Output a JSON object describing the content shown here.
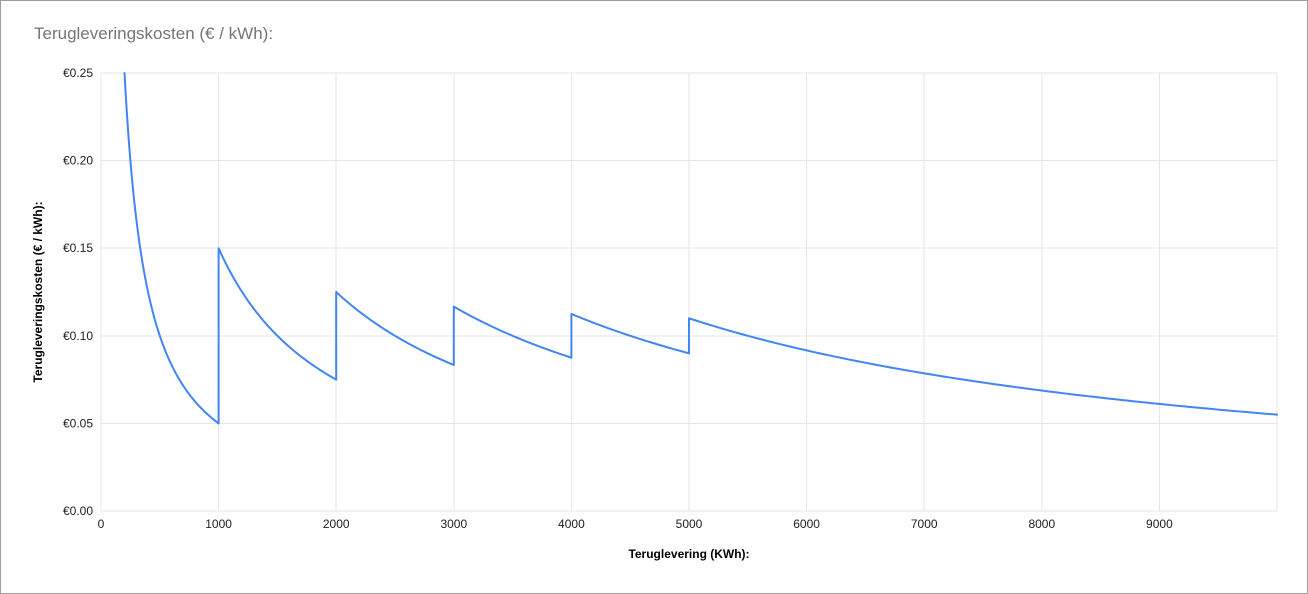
{
  "chart_data": {
    "type": "line",
    "title": "Terugleveringskosten (€ / kWh):",
    "xlabel": "Teruglevering (KWh):",
    "ylabel": "Terugleveringskosten (€ / kWh):",
    "xlim": [
      0,
      10000
    ],
    "ylim": [
      0,
      0.25
    ],
    "grid": true,
    "legend": false,
    "line_color": "#4285f4",
    "grid_color": "#e6e6e6",
    "tick_label_color": "#202124",
    "x_ticks": [
      0,
      1000,
      2000,
      3000,
      4000,
      5000,
      6000,
      7000,
      8000,
      9000
    ],
    "y_ticks": [
      {
        "value": 0.0,
        "label": "€0.00"
      },
      {
        "value": 0.05,
        "label": "€0.05"
      },
      {
        "value": 0.1,
        "label": "€0.10"
      },
      {
        "value": 0.15,
        "label": "€0.15"
      },
      {
        "value": 0.2,
        "label": "€0.20"
      },
      {
        "value": 0.25,
        "label": "€0.25"
      }
    ],
    "series": [
      {
        "name": "Terugleveringskosten (€ / kWh)",
        "shape": "sawtooth hyperbolic: y = fixed_cost / x, fixed cost steps up ~€100 at each 1000 kWh until 5000 kWh",
        "segments": [
          {
            "x_start": 200,
            "x_end": 1000,
            "fixed_cost_eur": 50
          },
          {
            "x_start": 1000,
            "x_end": 2000,
            "fixed_cost_eur": 150
          },
          {
            "x_start": 2000,
            "x_end": 3000,
            "fixed_cost_eur": 250
          },
          {
            "x_start": 3000,
            "x_end": 4000,
            "fixed_cost_eur": 350
          },
          {
            "x_start": 4000,
            "x_end": 5000,
            "fixed_cost_eur": 450
          },
          {
            "x_start": 5000,
            "x_end": 10000,
            "fixed_cost_eur": 550
          }
        ],
        "key_points": [
          [
            200,
            0.25
          ],
          [
            1000,
            0.05
          ],
          [
            1000,
            0.15
          ],
          [
            2000,
            0.075
          ],
          [
            2000,
            0.125
          ],
          [
            3000,
            0.083
          ],
          [
            3000,
            0.117
          ],
          [
            4000,
            0.088
          ],
          [
            4000,
            0.113
          ],
          [
            5000,
            0.09
          ],
          [
            5000,
            0.11
          ],
          [
            10000,
            0.055
          ]
        ]
      }
    ]
  }
}
